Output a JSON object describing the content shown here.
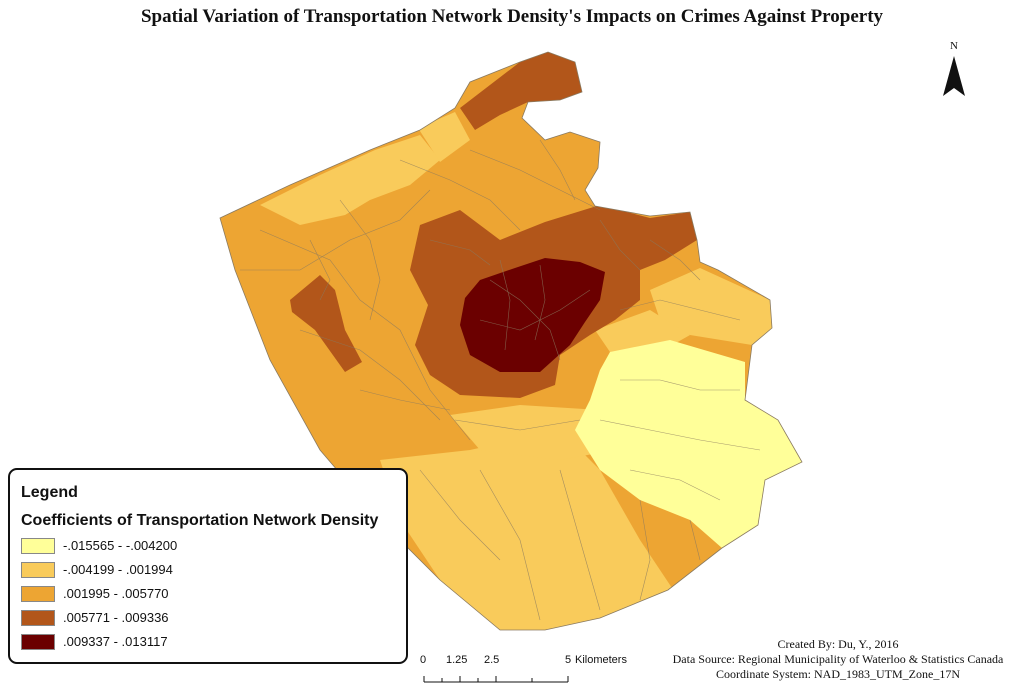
{
  "title": "Spatial Variation of Transportation Network Density's Impacts on Crimes Against Property",
  "north_arrow": {
    "label": "N",
    "icon": "north-arrow-icon"
  },
  "legend": {
    "title": "Legend",
    "subtitle": "Coefficients of Transportation Network Density",
    "classes": [
      {
        "label": "-.015565 - -.004200",
        "color": "#FFFF99"
      },
      {
        "label": "-.004199 - .001994",
        "color": "#F9CB5B"
      },
      {
        "label": ".001995 - .005770",
        "color": "#EDA533"
      },
      {
        "label": ".005771 - .009336",
        "color": "#B2561A"
      },
      {
        "label": ".009337 - .013117",
        "color": "#6B0000"
      }
    ]
  },
  "scale_bar": {
    "ticks": [
      "0",
      "1.25",
      "2.5",
      "5"
    ],
    "unit": "Kilometers"
  },
  "credits": {
    "created_by": "Created By: Du, Y., 2016",
    "data_source": "Data Source: Regional Municipality of Waterloo & Statistics Canada",
    "coordinate_system": "Coordinate System: NAD_1983_UTM_Zone_17N"
  }
}
